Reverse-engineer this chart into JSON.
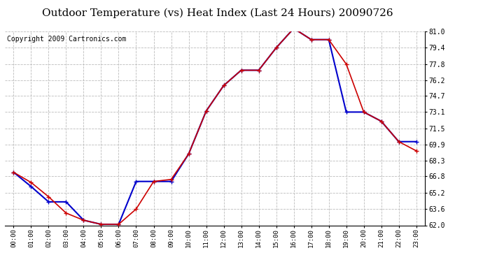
{
  "title": "Outdoor Temperature (vs) Heat Index (Last 24 Hours) 20090726",
  "copyright": "Copyright 2009 Cartronics.com",
  "x_labels": [
    "00:00",
    "01:00",
    "02:00",
    "03:00",
    "04:00",
    "05:00",
    "06:00",
    "07:00",
    "08:00",
    "09:00",
    "10:00",
    "11:00",
    "12:00",
    "13:00",
    "14:00",
    "15:00",
    "16:00",
    "17:00",
    "18:00",
    "19:00",
    "20:00",
    "21:00",
    "22:00",
    "23:00"
  ],
  "temp": [
    67.2,
    66.2,
    64.8,
    63.2,
    62.5,
    62.1,
    62.1,
    63.6,
    66.3,
    66.5,
    69.0,
    73.2,
    75.7,
    77.2,
    77.2,
    79.4,
    81.3,
    80.2,
    80.2,
    77.8,
    73.1,
    72.2,
    70.2,
    69.3
  ],
  "heat_index": [
    67.2,
    65.8,
    64.3,
    64.3,
    62.5,
    62.1,
    62.1,
    66.3,
    66.3,
    66.3,
    69.0,
    73.2,
    75.7,
    77.2,
    77.2,
    79.4,
    81.3,
    80.2,
    80.2,
    73.1,
    73.1,
    72.2,
    70.2,
    70.2
  ],
  "ylim": [
    62.0,
    81.0
  ],
  "yticks": [
    62.0,
    63.6,
    65.2,
    66.8,
    68.3,
    69.9,
    71.5,
    73.1,
    74.7,
    76.2,
    77.8,
    79.4,
    81.0
  ],
  "temp_color": "#cc0000",
  "heat_index_color": "#0000cc",
  "background_color": "#ffffff",
  "grid_color": "#bbbbbb",
  "title_fontsize": 11,
  "copyright_fontsize": 7,
  "figsize": [
    6.9,
    3.75
  ],
  "dpi": 100
}
